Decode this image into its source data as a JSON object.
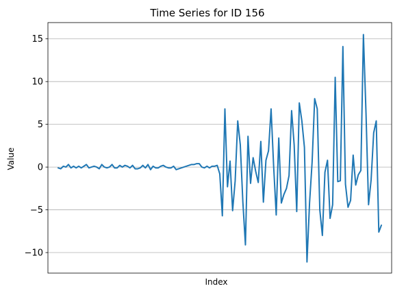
{
  "chart_data": {
    "type": "line",
    "title": "Time Series for ID 156",
    "xlabel": "Index",
    "ylabel": "Value",
    "xlim": [
      -4,
      130
    ],
    "ylim": [
      -12.4,
      16.9
    ],
    "yticks": [
      {
        "value": 15,
        "label": "15"
      },
      {
        "value": 10,
        "label": "10"
      },
      {
        "value": 5,
        "label": "5"
      },
      {
        "value": 0,
        "label": "0"
      },
      {
        "value": -5,
        "label": "−5"
      },
      {
        "value": -10,
        "label": "−10"
      }
    ],
    "xticks_shown": false,
    "grid": "y-major",
    "line_color": "#1f77b4",
    "series": [
      {
        "values": [
          -0.1,
          -0.2,
          0.1,
          0.0,
          0.3,
          -0.1,
          0.1,
          -0.1,
          0.1,
          -0.1,
          0.1,
          0.3,
          -0.1,
          0.0,
          0.1,
          0.0,
          -0.2,
          0.3,
          0.0,
          -0.1,
          0.0,
          0.3,
          -0.1,
          -0.1,
          0.2,
          0.0,
          0.2,
          0.1,
          -0.1,
          0.2,
          -0.2,
          -0.2,
          -0.1,
          0.2,
          -0.1,
          0.3,
          -0.3,
          0.1,
          -0.1,
          -0.1,
          0.1,
          0.2,
          0.0,
          -0.1,
          -0.1,
          0.1,
          -0.3,
          -0.2,
          -0.1,
          0.0,
          0.1,
          0.2,
          0.3,
          0.3,
          0.4,
          0.4,
          0.0,
          -0.1,
          0.1,
          -0.1,
          0.1,
          0.1,
          0.2,
          -0.8,
          -5.7,
          6.8,
          -2.3,
          0.7,
          -5.1,
          -1.6,
          5.4,
          2.6,
          -4.1,
          -9.1,
          3.6,
          -1.9,
          1.1,
          -0.5,
          -1.8,
          3.0,
          -4.1,
          0.8,
          1.9,
          6.8,
          0.1,
          -5.6,
          3.4,
          -4.2,
          -3.2,
          -2.5,
          -1.0,
          6.6,
          2.6,
          -5.2,
          7.5,
          5.4,
          2.3,
          -11.1,
          -4.2,
          0.6,
          8.0,
          6.8,
          -5.0,
          -8.0,
          -0.6,
          0.8,
          -6.0,
          -4.4,
          10.5,
          -1.7,
          -1.6,
          14.1,
          -2.0,
          -4.7,
          -3.9,
          1.4,
          -2.1,
          -0.9,
          -0.4,
          15.5,
          6.4,
          -4.4,
          -1.5,
          4.0,
          5.4,
          -7.6,
          -6.8
        ]
      }
    ]
  }
}
